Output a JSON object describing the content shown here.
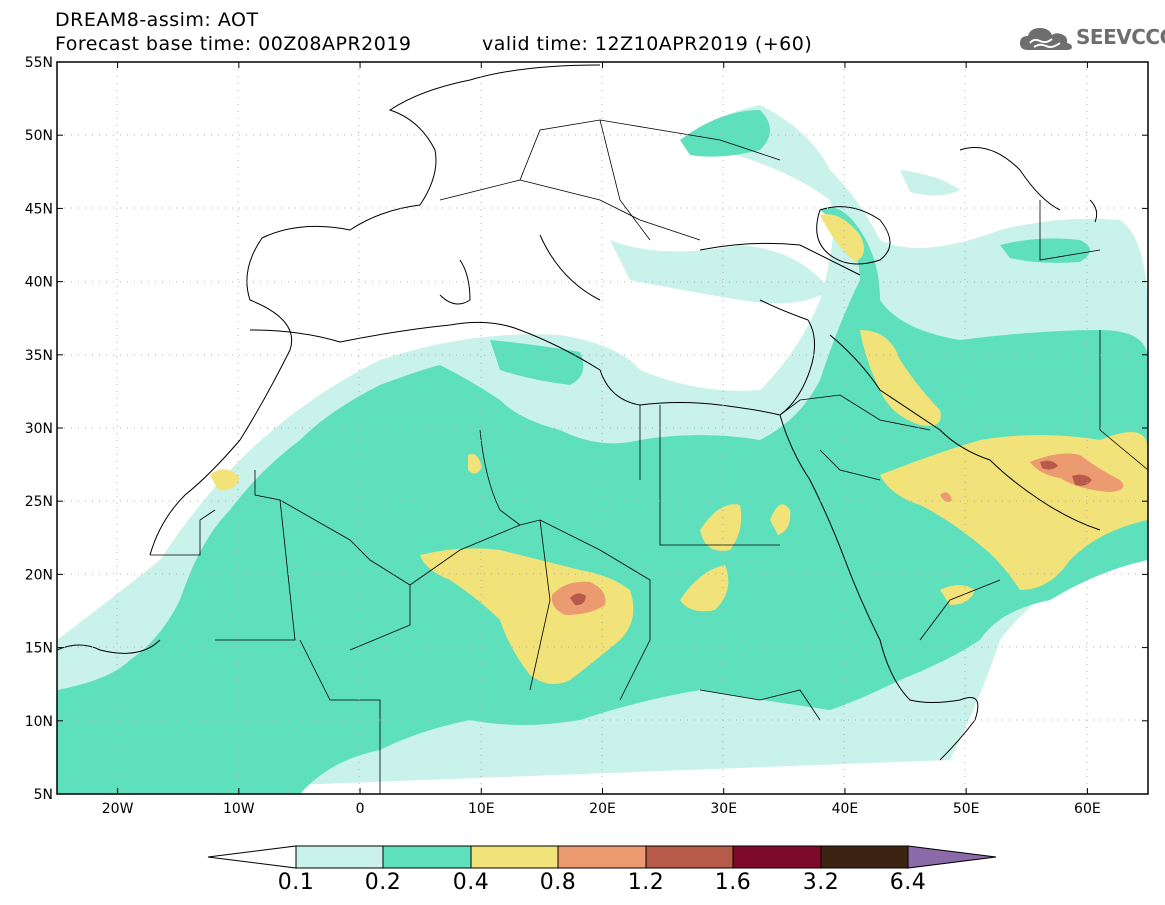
{
  "header": {
    "title": "DREAM8-assim: AOT",
    "base_time": "Forecast base time: 00Z08APR2019",
    "valid_time": "valid time: 12Z10APR2019 (+60)"
  },
  "logo": {
    "text": "SEEVCCC",
    "icon": "cloud-logo-icon"
  },
  "map": {
    "lon_range": [
      -25,
      65
    ],
    "lat_range": [
      5,
      55
    ],
    "lat_ticks": [
      "55N",
      "50N",
      "45N",
      "40N",
      "35N",
      "30N",
      "25N",
      "20N",
      "15N",
      "10N",
      "5N"
    ],
    "lon_ticks": [
      "20W",
      "10W",
      "0",
      "10E",
      "20E",
      "30E",
      "40E",
      "50E",
      "60E"
    ],
    "colors": {
      "c01": "#c8f2ea",
      "c02": "#5ee0bd",
      "c04": "#f2e27a",
      "c08": "#ec9a70",
      "c12": "#b85a4a",
      "c16": "#7d0a28",
      "c32": "#3d2412",
      "c64": "#8a6aa8"
    }
  },
  "colorbar": {
    "labels": [
      "0.1",
      "0.2",
      "0.4",
      "0.8",
      "1.2",
      "1.6",
      "3.2",
      "6.4"
    ]
  }
}
